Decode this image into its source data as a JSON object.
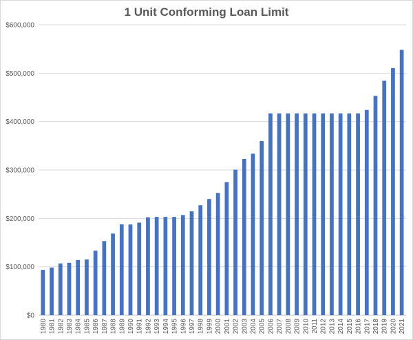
{
  "chart_data": {
    "type": "bar",
    "title": "1 Unit Conforming Loan Limit",
    "xlabel": "",
    "ylabel": "",
    "ylim": [
      0,
      600000
    ],
    "y_ticks": [
      0,
      100000,
      200000,
      300000,
      400000,
      500000,
      600000
    ],
    "y_tick_labels": [
      "$0",
      "$100,000",
      "$200,000",
      "$300,000",
      "$400,000",
      "$500,000",
      "$600,000"
    ],
    "grid": true,
    "bar_color": "#4472c4",
    "categories": [
      "1980",
      "1981",
      "1982",
      "1983",
      "1984",
      "1985",
      "1986",
      "1987",
      "1988",
      "1989",
      "1990",
      "1991",
      "1992",
      "1993",
      "1994",
      "1995",
      "1996",
      "1997",
      "1998",
      "1999",
      "2000",
      "2001",
      "2002",
      "2003",
      "2004",
      "2005",
      "2006",
      "2007",
      "2008",
      "2009",
      "2010",
      "2011",
      "2012",
      "2013",
      "2014",
      "2015",
      "2016",
      "2017",
      "2018",
      "2019",
      "2020",
      "2021"
    ],
    "values": [
      93750,
      98500,
      107000,
      108300,
      114000,
      115300,
      133250,
      153100,
      168700,
      187600,
      187450,
      191250,
      202300,
      203150,
      203150,
      203150,
      207000,
      214600,
      227150,
      240000,
      252700,
      275000,
      300700,
      322700,
      333700,
      359650,
      417000,
      417000,
      417000,
      417000,
      417000,
      417000,
      417000,
      417000,
      417000,
      417000,
      417000,
      424100,
      453100,
      484350,
      510400,
      548250
    ]
  }
}
